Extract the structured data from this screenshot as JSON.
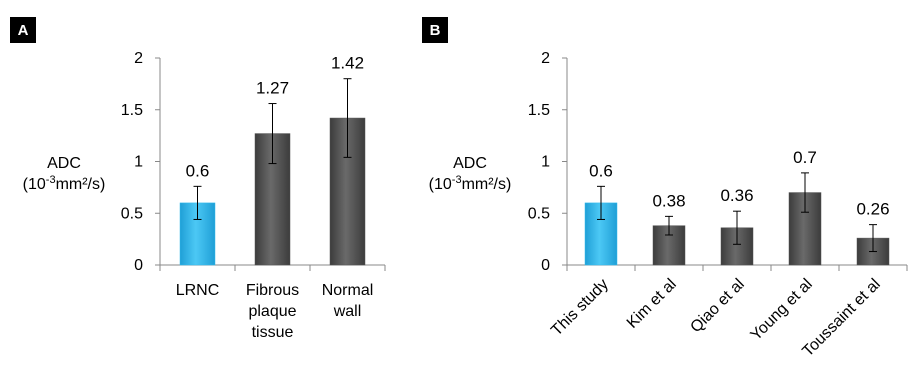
{
  "chart_data": [
    {
      "type": "bar",
      "panel": "A",
      "categories": [
        "LRNC",
        "Fibrous plaque tissue",
        "Normal wall"
      ],
      "category_lines": [
        [
          "LRNC"
        ],
        [
          "Fibrous",
          "plaque",
          "tissue"
        ],
        [
          "Normal",
          "wall"
        ]
      ],
      "values": [
        0.6,
        1.27,
        1.42
      ],
      "errors": [
        0.16,
        0.29,
        0.38
      ],
      "value_labels": [
        "0.6",
        "1.27",
        "1.42"
      ],
      "bar_colors": [
        "#33bbee",
        "#555555",
        "#555555"
      ],
      "ylabel_line1": "ADC",
      "ylabel_line2_pre": "(10",
      "ylabel_line2_sup": "-3",
      "ylabel_line2_post": "mm²/s)",
      "ylim": [
        0,
        2
      ],
      "yticks": [
        "0",
        "0.5",
        "1",
        "1.5",
        "2"
      ],
      "grid": false
    },
    {
      "type": "bar",
      "panel": "B",
      "categories": [
        "This study",
        "Kim et al",
        "Qiao et al",
        "Young et al",
        "Toussaint et al"
      ],
      "values": [
        0.6,
        0.38,
        0.36,
        0.7,
        0.26
      ],
      "errors": [
        0.16,
        0.09,
        0.16,
        0.19,
        0.13
      ],
      "value_labels": [
        "0.6",
        "0.38",
        "0.36",
        "0.7",
        "0.26"
      ],
      "bar_colors": [
        "#33bbee",
        "#555555",
        "#555555",
        "#555555",
        "#555555"
      ],
      "ylabel_line1": "ADC",
      "ylabel_line2_pre": "(10",
      "ylabel_line2_sup": "-3",
      "ylabel_line2_post": "mm²/s)",
      "ylim": [
        0,
        2
      ],
      "yticks": [
        "0",
        "0.5",
        "1",
        "1.5",
        "2"
      ],
      "grid": false
    }
  ]
}
